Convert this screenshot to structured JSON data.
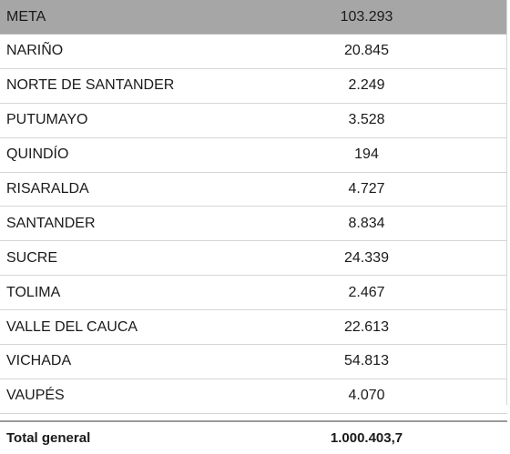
{
  "table": {
    "rows": [
      {
        "name": "META",
        "value": "103.293"
      },
      {
        "name": "NARIÑO",
        "value": "20.845"
      },
      {
        "name": "NORTE DE SANTANDER",
        "value": "2.249"
      },
      {
        "name": "PUTUMAYO",
        "value": "3.528"
      },
      {
        "name": "QUINDÍO",
        "value": "194"
      },
      {
        "name": "RISARALDA",
        "value": "4.727"
      },
      {
        "name": "SANTANDER",
        "value": "8.834"
      },
      {
        "name": "SUCRE",
        "value": "24.339"
      },
      {
        "name": "TOLIMA",
        "value": "2.467"
      },
      {
        "name": "VALLE DEL CAUCA",
        "value": "22.613"
      },
      {
        "name": "VICHADA",
        "value": "54.813"
      },
      {
        "name": "VAUPÉS",
        "value": "4.070"
      }
    ],
    "total": {
      "name": "Total general",
      "value": "1.000.403,7"
    }
  },
  "colors": {
    "header_background": "#a6a6a6",
    "row_divider": "#d6d6d6"
  }
}
